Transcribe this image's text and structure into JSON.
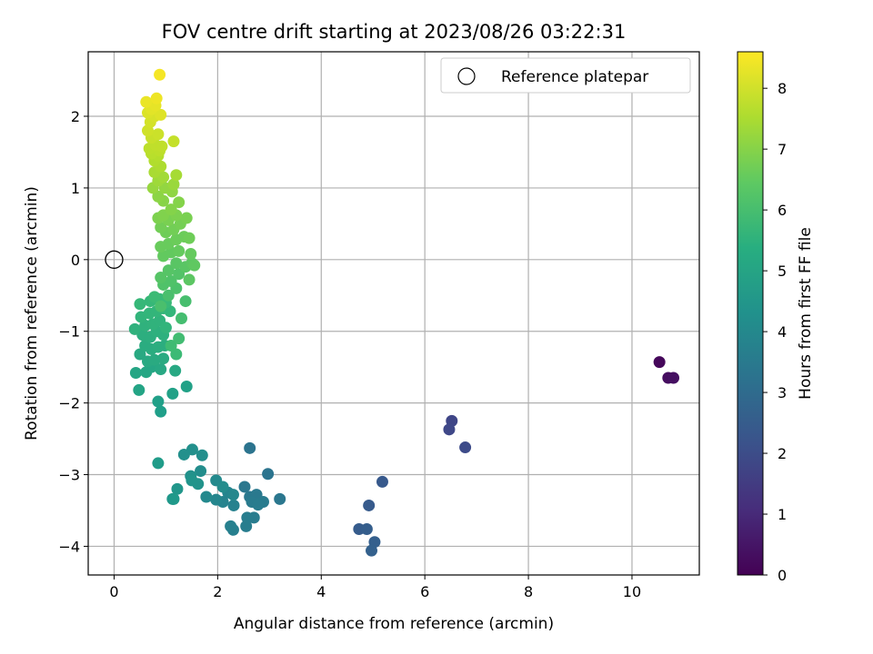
{
  "chart_data": {
    "type": "scatter",
    "title": "FOV centre drift starting at 2023/08/26 03:22:31",
    "xlabel": "Angular distance from reference (arcmin)",
    "ylabel": "Rotation from reference (arcmin)",
    "xlim": [
      -0.5,
      11.3
    ],
    "ylim": [
      -4.4,
      2.9
    ],
    "xticks": [
      0,
      2,
      4,
      6,
      8,
      10
    ],
    "xtick_labels": [
      "0",
      "2",
      "4",
      "6",
      "8",
      "10"
    ],
    "yticks": [
      -4,
      -3,
      -2,
      -1,
      0,
      1,
      2
    ],
    "ytick_labels": [
      "−4",
      "−3",
      "−2",
      "−1",
      "0",
      "1",
      "2"
    ],
    "grid": true,
    "legend": {
      "position": "top-right",
      "entries": [
        "Reference platepar"
      ]
    },
    "reference_point": {
      "x": 0,
      "y": 0,
      "marker": "open-circle"
    },
    "colorbar": {
      "label": "Hours from first FF file",
      "colormap": "viridis",
      "range": [
        0,
        8.6
      ],
      "ticks": [
        0,
        1,
        2,
        3,
        4,
        5,
        6,
        7,
        8
      ],
      "tick_labels": [
        "0",
        "1",
        "2",
        "3",
        "4",
        "5",
        "6",
        "7",
        "8"
      ]
    },
    "points": [
      [
        10.53,
        -1.43,
        0.15
      ],
      [
        10.7,
        -1.65,
        0.3
      ],
      [
        10.8,
        -1.65,
        0.35
      ],
      [
        6.52,
        -2.25,
        1.8
      ],
      [
        6.47,
        -2.37,
        1.85
      ],
      [
        6.78,
        -2.62,
        1.95
      ],
      [
        5.18,
        -3.1,
        2.4
      ],
      [
        4.92,
        -3.43,
        2.45
      ],
      [
        4.73,
        -3.76,
        2.5
      ],
      [
        4.88,
        -3.76,
        2.55
      ],
      [
        5.03,
        -3.94,
        2.6
      ],
      [
        4.97,
        -4.06,
        2.65
      ],
      [
        2.62,
        -2.63,
        3.3
      ],
      [
        2.97,
        -2.99,
        3.3
      ],
      [
        3.2,
        -3.34,
        3.4
      ],
      [
        2.52,
        -3.17,
        3.4
      ],
      [
        2.62,
        -3.31,
        3.45
      ],
      [
        2.75,
        -3.28,
        3.5
      ],
      [
        2.66,
        -3.38,
        3.55
      ],
      [
        2.88,
        -3.38,
        3.55
      ],
      [
        2.78,
        -3.42,
        3.6
      ],
      [
        2.7,
        -3.6,
        3.6
      ],
      [
        2.57,
        -3.6,
        3.65
      ],
      [
        2.55,
        -3.72,
        3.65
      ],
      [
        2.3,
        -3.77,
        3.7
      ],
      [
        2.25,
        -3.72,
        3.75
      ],
      [
        2.31,
        -3.43,
        3.8
      ],
      [
        2.1,
        -3.38,
        3.85
      ],
      [
        2.2,
        -3.25,
        3.9
      ],
      [
        1.97,
        -3.35,
        3.95
      ],
      [
        2.3,
        -3.28,
        4.0
      ],
      [
        1.78,
        -3.31,
        4.05
      ],
      [
        1.97,
        -3.08,
        4.1
      ],
      [
        2.1,
        -3.17,
        4.15
      ],
      [
        1.67,
        -2.95,
        4.2
      ],
      [
        1.7,
        -2.73,
        4.25
      ],
      [
        1.51,
        -2.65,
        4.3
      ],
      [
        1.35,
        -2.72,
        4.3
      ],
      [
        1.48,
        -3.02,
        4.35
      ],
      [
        1.62,
        -3.13,
        4.4
      ],
      [
        1.5,
        -3.08,
        4.45
      ],
      [
        1.22,
        -3.2,
        4.5
      ],
      [
        1.13,
        -3.34,
        4.55
      ],
      [
        1.15,
        -3.34,
        4.6
      ],
      [
        0.85,
        -2.84,
        4.7
      ],
      [
        0.9,
        -2.12,
        4.8
      ],
      [
        0.85,
        -1.98,
        4.85
      ],
      [
        1.13,
        -1.87,
        4.9
      ],
      [
        1.4,
        -1.77,
        4.9
      ],
      [
        0.48,
        -1.82,
        5.0
      ],
      [
        0.42,
        -1.58,
        5.05
      ],
      [
        0.62,
        -1.57,
        5.1
      ],
      [
        0.72,
        -1.5,
        5.1
      ],
      [
        0.9,
        -1.53,
        5.15
      ],
      [
        1.18,
        -1.55,
        5.15
      ],
      [
        0.5,
        -1.32,
        5.2
      ],
      [
        0.65,
        -1.42,
        5.2
      ],
      [
        0.78,
        -1.4,
        5.25
      ],
      [
        0.95,
        -1.38,
        5.25
      ],
      [
        0.6,
        -1.2,
        5.3
      ],
      [
        0.72,
        -1.25,
        5.3
      ],
      [
        0.85,
        -1.22,
        5.35
      ],
      [
        0.98,
        -1.2,
        5.35
      ],
      [
        0.55,
        -1.05,
        5.4
      ],
      [
        0.7,
        -1.08,
        5.4
      ],
      [
        0.82,
        -1.0,
        5.45
      ],
      [
        0.95,
        -1.05,
        5.45
      ],
      [
        0.4,
        -0.97,
        5.5
      ],
      [
        0.6,
        -0.92,
        5.5
      ],
      [
        0.75,
        -0.9,
        5.55
      ],
      [
        0.88,
        -0.85,
        5.55
      ],
      [
        1.0,
        -0.95,
        5.6
      ],
      [
        0.52,
        -0.8,
        5.6
      ],
      [
        0.68,
        -0.75,
        5.65
      ],
      [
        0.82,
        -0.72,
        5.65
      ],
      [
        0.95,
        -0.68,
        5.7
      ],
      [
        1.08,
        -0.72,
        5.7
      ],
      [
        0.5,
        -0.62,
        5.75
      ],
      [
        0.7,
        -0.58,
        5.75
      ],
      [
        0.88,
        -0.55,
        5.8
      ],
      [
        1.0,
        -0.6,
        5.8
      ],
      [
        0.78,
        -0.52,
        5.85
      ],
      [
        1.2,
        -1.32,
        5.85
      ],
      [
        1.1,
        -1.2,
        5.9
      ],
      [
        1.25,
        -1.1,
        5.95
      ],
      [
        1.3,
        -0.82,
        6.0
      ],
      [
        1.38,
        -0.58,
        6.05
      ],
      [
        0.9,
        -0.65,
        6.1
      ],
      [
        1.05,
        -0.5,
        6.1
      ],
      [
        1.2,
        -0.4,
        6.15
      ],
      [
        0.95,
        -0.35,
        6.2
      ],
      [
        1.1,
        -0.3,
        6.2
      ],
      [
        1.25,
        -0.2,
        6.25
      ],
      [
        0.9,
        -0.25,
        6.3
      ],
      [
        1.05,
        -0.15,
        6.3
      ],
      [
        1.2,
        -0.05,
        6.35
      ],
      [
        1.38,
        -0.1,
        6.35
      ],
      [
        1.45,
        -0.28,
        6.4
      ],
      [
        1.5,
        -0.05,
        6.4
      ],
      [
        1.55,
        -0.08,
        6.45
      ],
      [
        0.95,
        0.05,
        6.5
      ],
      [
        1.1,
        0.1,
        6.5
      ],
      [
        1.25,
        0.12,
        6.55
      ],
      [
        1.48,
        0.08,
        6.55
      ],
      [
        0.9,
        0.18,
        6.6
      ],
      [
        1.05,
        0.22,
        6.6
      ],
      [
        1.2,
        0.28,
        6.65
      ],
      [
        1.35,
        0.32,
        6.65
      ],
      [
        1.45,
        0.3,
        6.7
      ],
      [
        1.0,
        0.38,
        6.7
      ],
      [
        1.15,
        0.42,
        6.75
      ],
      [
        0.9,
        0.45,
        6.75
      ],
      [
        1.28,
        0.5,
        6.8
      ],
      [
        1.05,
        0.55,
        6.85
      ],
      [
        1.4,
        0.58,
        6.85
      ],
      [
        0.85,
        0.58,
        6.9
      ],
      [
        1.2,
        0.62,
        6.9
      ],
      [
        0.95,
        0.62,
        6.95
      ],
      [
        1.1,
        0.7,
        7.0
      ],
      [
        1.25,
        0.8,
        7.0
      ],
      [
        0.95,
        0.82,
        7.05
      ],
      [
        0.85,
        0.88,
        7.1
      ],
      [
        1.12,
        0.95,
        7.15
      ],
      [
        0.98,
        1.0,
        7.2
      ],
      [
        0.75,
        1.0,
        7.25
      ],
      [
        1.15,
        1.05,
        7.3
      ],
      [
        0.85,
        1.1,
        7.35
      ],
      [
        0.95,
        1.15,
        7.4
      ],
      [
        1.2,
        1.18,
        7.45
      ],
      [
        0.78,
        1.22,
        7.5
      ],
      [
        0.9,
        1.3,
        7.55
      ],
      [
        0.78,
        1.38,
        7.6
      ],
      [
        0.85,
        1.45,
        7.65
      ],
      [
        0.72,
        1.48,
        7.7
      ],
      [
        0.88,
        1.52,
        7.75
      ],
      [
        0.68,
        1.55,
        7.75
      ],
      [
        0.8,
        1.6,
        7.8
      ],
      [
        0.92,
        1.58,
        7.8
      ],
      [
        1.15,
        1.65,
        7.85
      ],
      [
        0.72,
        1.7,
        7.9
      ],
      [
        0.85,
        1.75,
        7.95
      ],
      [
        0.65,
        1.8,
        8.0
      ],
      [
        0.7,
        1.92,
        8.05
      ],
      [
        0.78,
        2.0,
        8.1
      ],
      [
        0.65,
        2.05,
        8.15
      ],
      [
        0.9,
        2.02,
        8.2
      ],
      [
        0.72,
        2.1,
        8.25
      ],
      [
        0.8,
        2.15,
        8.3
      ],
      [
        0.62,
        2.2,
        8.35
      ],
      [
        0.82,
        2.25,
        8.4
      ],
      [
        0.88,
        2.58,
        8.5
      ]
    ]
  }
}
